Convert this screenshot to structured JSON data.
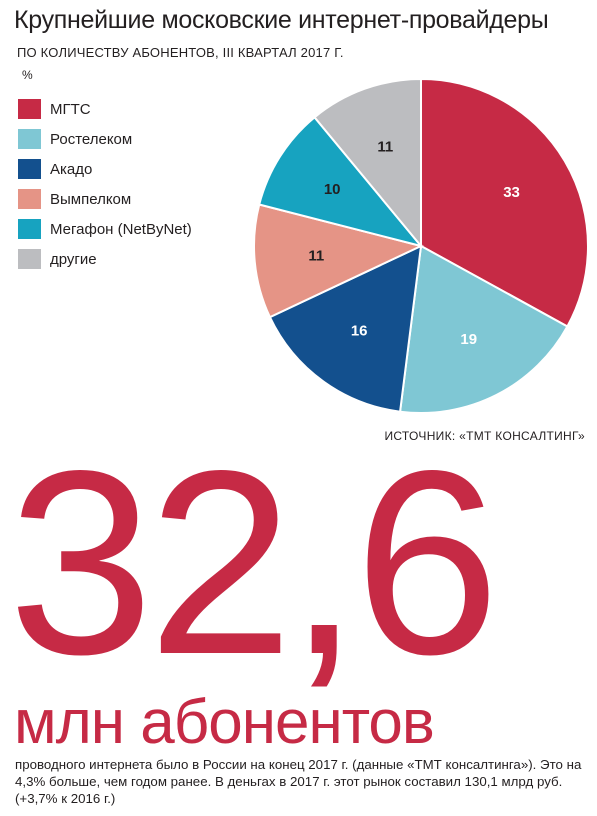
{
  "title": "Крупнейшие московские интернет-провайдеры",
  "subtitle": "ПО КОЛИЧЕСТВУ АБОНЕНТОВ, III КВАРТАЛ 2017 Г.",
  "unit": "%",
  "source": "ИСТОЧНИК: «ТМТ КОНСАЛТИНГ»",
  "chart_data": {
    "type": "pie",
    "legend_position": "left",
    "slices": [
      {
        "name": "МГТС",
        "value": 33,
        "label": "33",
        "color": "#c62a45",
        "label_color": "#ffffff"
      },
      {
        "name": "Ростелеком",
        "value": 19,
        "label": "19",
        "color": "#7fc7d4",
        "label_color": "#ffffff"
      },
      {
        "name": "Акадо",
        "value": 16,
        "label": "16",
        "color": "#13508e",
        "label_color": "#ffffff"
      },
      {
        "name": "Вымпелком",
        "value": 11,
        "label": "11",
        "color": "#e59486",
        "label_color": "#231f20"
      },
      {
        "name": "Мегафон (NetByNet)",
        "value": 10,
        "label": "10",
        "color": "#17a3c0",
        "label_color": "#231f20"
      },
      {
        "name": "другие",
        "value": 11,
        "label": "11",
        "color": "#bcbdc0",
        "label_color": "#231f20"
      }
    ]
  },
  "highlight": {
    "number": "32,6",
    "unit": "млн абонентов",
    "text": "проводного интернета было в России на конец 2017 г. (данные «ТМТ консалтинга»). Это на 4,3% больше, чем годом ранее. В деньгах в 2017 г. этот рынок составил 130,1 млрд руб. (+3,7% к 2016 г.)",
    "color": "#c62a45"
  }
}
